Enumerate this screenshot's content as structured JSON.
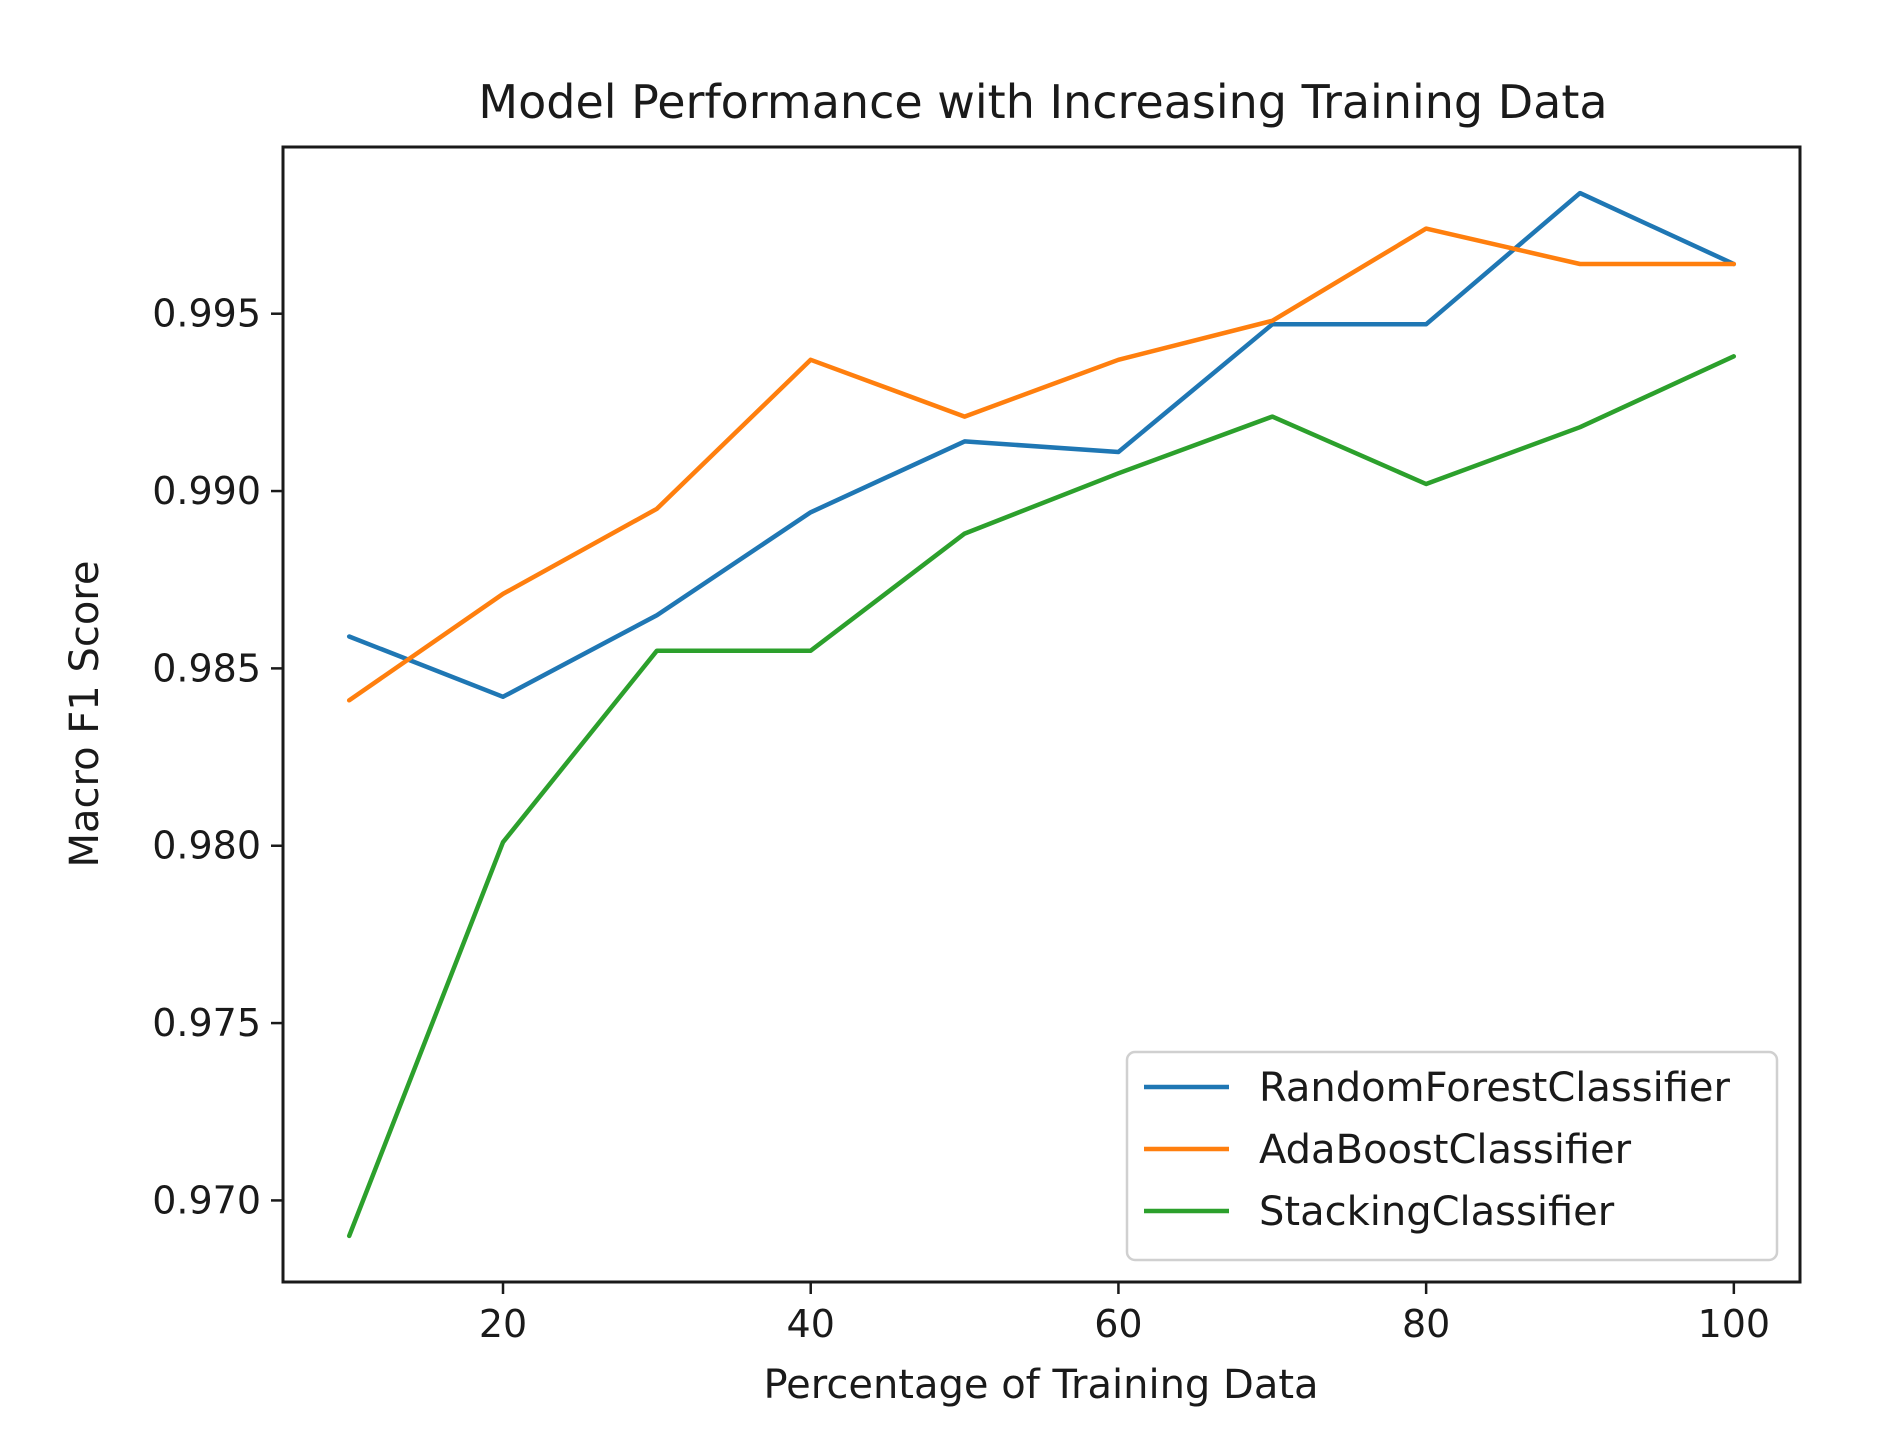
{
  "chart_data": {
    "type": "line",
    "title": "Model Performance with Increasing Training Data",
    "xlabel": "Percentage of Training Data",
    "ylabel": "Macro F1 Score",
    "xlim": [
      5.7,
      104.3
    ],
    "ylim": [
      0.9677,
      0.9997
    ],
    "x_ticks": [
      20,
      40,
      60,
      80,
      100
    ],
    "y_ticks": [
      0.97,
      0.975,
      0.98,
      0.985,
      0.99,
      0.995
    ],
    "x_tick_labels": [
      "20",
      "40",
      "60",
      "80",
      "100"
    ],
    "y_tick_labels": [
      "0.970",
      "0.975",
      "0.980",
      "0.985",
      "0.990",
      "0.995"
    ],
    "grid": false,
    "legend_position": "lower right",
    "x": [
      10,
      20,
      30,
      40,
      50,
      60,
      70,
      80,
      90,
      100
    ],
    "series": [
      {
        "name": "RandomForestClassifier",
        "color": "#1f77b4",
        "values": [
          0.9859,
          0.9842,
          0.9865,
          0.9894,
          0.9914,
          0.9911,
          0.9947,
          0.9947,
          0.9984,
          0.9964
        ]
      },
      {
        "name": "AdaBoostClassifier",
        "color": "#ff7f0e",
        "values": [
          0.9841,
          0.9871,
          0.9895,
          0.9937,
          0.9921,
          0.9937,
          0.9948,
          0.9974,
          0.9964,
          0.9964
        ]
      },
      {
        "name": "StackingClassifier",
        "color": "#2ca02c",
        "values": [
          0.969,
          0.9801,
          0.9855,
          0.9855,
          0.9888,
          0.9905,
          0.9921,
          0.9902,
          0.9918,
          0.9938
        ]
      }
    ]
  }
}
